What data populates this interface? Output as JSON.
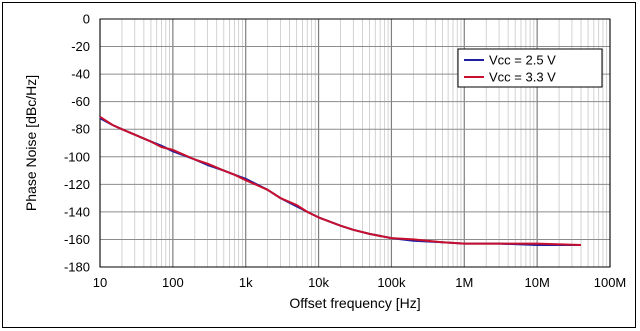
{
  "chart_data": {
    "type": "line",
    "xlabel": "Offset frequency  [Hz]",
    "ylabel": "Phase Noise [dBc/Hz]",
    "xscale": "log",
    "xlim": [
      10,
      100000000
    ],
    "ylim": [
      -180,
      0
    ],
    "grid": true,
    "legend_position": "top-right",
    "x_tick_labels": [
      "10",
      "100",
      "1k",
      "10k",
      "100k",
      "1M",
      "10M",
      "100M"
    ],
    "x_tick_values": [
      10,
      100,
      1000,
      10000,
      100000,
      1000000,
      10000000,
      100000000
    ],
    "y_tick_values": [
      0,
      -20,
      -40,
      -60,
      -80,
      -100,
      -120,
      -140,
      -160,
      -180
    ],
    "series": [
      {
        "name": "Vcc = 2.5 V",
        "color": "#1f1fa0",
        "x": [
          10,
          15,
          20,
          30,
          50,
          70,
          100,
          200,
          300,
          500,
          700,
          1000,
          2000,
          3000,
          5000,
          7000,
          10000,
          20000,
          30000,
          50000,
          100000,
          200000,
          500000,
          1000000,
          3000000,
          10000000,
          40000000
        ],
        "y": [
          -72,
          -77,
          -80,
          -84,
          -89,
          -92,
          -96,
          -102,
          -106,
          -110,
          -113,
          -116,
          -124,
          -130,
          -136,
          -140,
          -144,
          -150,
          -153,
          -156,
          -159,
          -161,
          -162,
          -163,
          -163,
          -164,
          -164
        ]
      },
      {
        "name": "Vcc = 3.3 V",
        "color": "#c8102e",
        "x": [
          10,
          15,
          20,
          30,
          50,
          70,
          100,
          200,
          300,
          500,
          700,
          1000,
          2000,
          3000,
          5000,
          7000,
          10000,
          20000,
          30000,
          50000,
          100000,
          200000,
          500000,
          1000000,
          3000000,
          10000000,
          40000000
        ],
        "y": [
          -71,
          -77,
          -80,
          -84,
          -89,
          -93,
          -95,
          -102,
          -105,
          -110,
          -113,
          -117,
          -124,
          -130,
          -135,
          -140,
          -144,
          -150,
          -153,
          -156,
          -159,
          -160,
          -162,
          -163,
          -163,
          -163,
          -164
        ]
      }
    ]
  }
}
